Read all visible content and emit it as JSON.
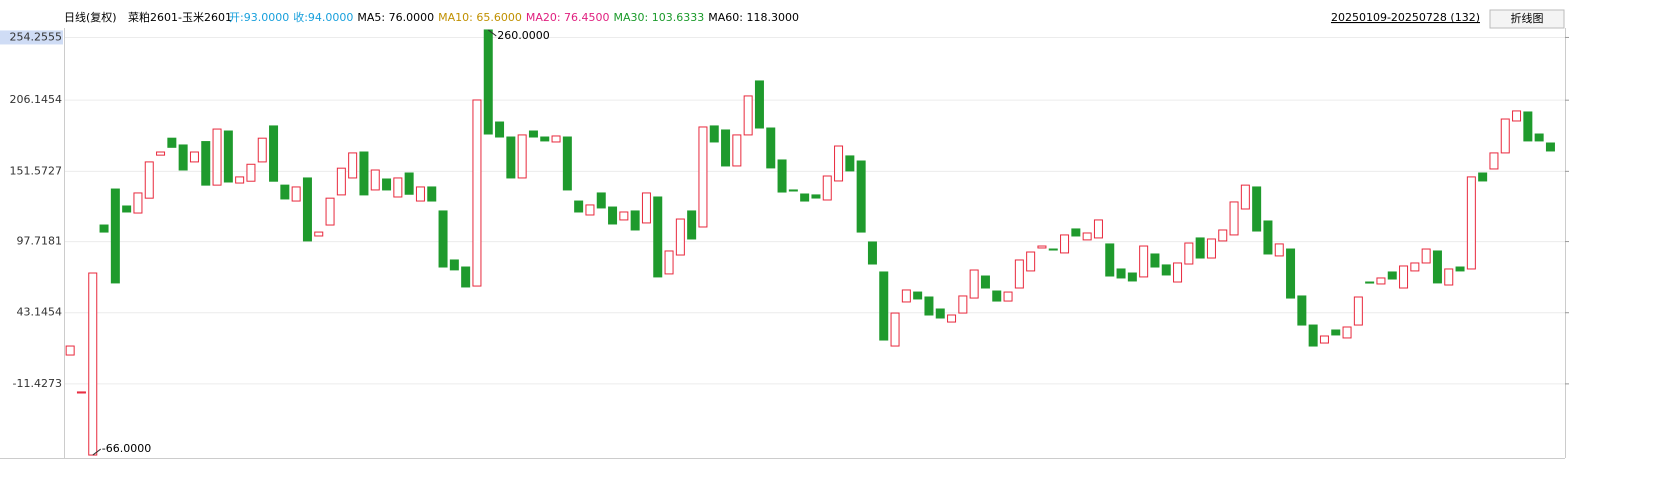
{
  "chart_data": {
    "type": "candlestick",
    "title": "日线(复权)",
    "subtitle": "菜粕2601-玉米2601",
    "indicators": [
      {
        "text": "开:93.0000",
        "color": "#19a0dc"
      },
      {
        "text": "收:94.0000",
        "color": "#19a0dc"
      },
      {
        "text": "MA5: 76.0000",
        "color": "#000000"
      },
      {
        "text": "MA10: 65.6000",
        "color": "#c09000"
      },
      {
        "text": "MA20: 76.4500",
        "color": "#e0207f"
      },
      {
        "text": "MA30: 103.6333",
        "color": "#1a9a2a"
      },
      {
        "text": "MA60: 118.3000",
        "color": "#000000"
      }
    ],
    "date_range": "20250109-20250728 (132)",
    "button": "折线图",
    "up_color": "#e8283c",
    "down_color": "#1f9a2d",
    "grid": true,
    "ylim": [
      -67.5,
      261.5
    ],
    "yticks": [
      -11.4273,
      43.1454,
      97.7181,
      151.5727,
      206.1454,
      254.2555
    ],
    "open": [
      10.7,
      -18.4,
      -66,
      110.4,
      138,
      125,
      119.6,
      131,
      164,
      177,
      171.8,
      158.8,
      174.4,
      141,
      182.5,
      142.6,
      144,
      158.8,
      186.4,
      141,
      128.8,
      146.5,
      102,
      110.4,
      133.5,
      146.5,
      166.4,
      137.3,
      145.7,
      131.9,
      150.3,
      128.8,
      139.6,
      121.2,
      83.6,
      78.2,
      63.6,
      260,
      189.4,
      177.9,
      146.5,
      182.5,
      177.9,
      174.1,
      177.9,
      128.8,
      118.1,
      135,
      124.2,
      114.3,
      121.2,
      112,
      131.9,
      72.9,
      87.4,
      121.2,
      108.9,
      186.4,
      183.3,
      155.7,
      179.5,
      220.9,
      184.8,
      160.3,
      137.3,
      134.2,
      133.5,
      129.6,
      144.2,
      163.4,
      159.5,
      97.4,
      74.4,
      17.6,
      51.4,
      59,
      55.2,
      46,
      36,
      42.9,
      54.4,
      71.3,
      59.8,
      52.1,
      62.1,
      75.2,
      92.8,
      92,
      89,
      107.4,
      99,
      100.5,
      95.9,
      76.7,
      73.6,
      70.6,
      88.2,
      79.8,
      66.7,
      80.5,
      100.5,
      85.1,
      98.2,
      102.8,
      122.7,
      139.6,
      113.5,
      86.7,
      92,
      56,
      33.7,
      19.9,
      29.9,
      23.8,
      33.7,
      66.7,
      65.2,
      74.4,
      62.1,
      75.2,
      81.3,
      90.5,
      64.4,
      78.2,
      76.7,
      150.3,
      153.4,
      165.7,
      190.2,
      197.1,
      180.2,
      173.3
    ],
    "close": [
      17.6,
      -17.6,
      73.6,
      105,
      66,
      120.4,
      135,
      158.8,
      166.4,
      170,
      152.6,
      166.4,
      141,
      184,
      143.4,
      147.3,
      157,
      177,
      144,
      130.4,
      139.6,
      98.2,
      105,
      131,
      154,
      165.7,
      133.5,
      152.6,
      137.3,
      146.5,
      134,
      139.6,
      128.8,
      78.2,
      76,
      62.9,
      206.3,
      180.2,
      177.9,
      146.5,
      179.5,
      177.9,
      174.9,
      178.7,
      137.3,
      120.4,
      125.8,
      123.5,
      111.2,
      120.4,
      106.6,
      135,
      70.6,
      90.5,
      115,
      99.7,
      185.6,
      174.1,
      155.7,
      179.5,
      209.4,
      184.8,
      154.2,
      135.7,
      136.5,
      128.8,
      131.1,
      148,
      171,
      151.9,
      105,
      80.5,
      22.2,
      42.9,
      60.6,
      53.7,
      41.4,
      39.1,
      41.4,
      56,
      75.9,
      62.1,
      52.1,
      59,
      83.6,
      89.7,
      94.3,
      91.3,
      102.8,
      102,
      104.3,
      114.3,
      71.3,
      69.8,
      67.5,
      94.3,
      78.2,
      72.1,
      81.3,
      96.6,
      85.1,
      99.7,
      106.6,
      128.1,
      141,
      105.8,
      88.2,
      95.9,
      54.4,
      33.7,
      17.6,
      25.3,
      26.1,
      32.2,
      55.2,
      65.9,
      69.8,
      69,
      79,
      81.3,
      92,
      66,
      76.7,
      75.2,
      147.3,
      144.2,
      165.7,
      191.7,
      197.9,
      174.9,
      174.9,
      167.2
    ],
    "annotations": [
      {
        "value": 260,
        "label": "260.0000"
      },
      {
        "value": -66,
        "label": "-66.0000"
      }
    ]
  }
}
